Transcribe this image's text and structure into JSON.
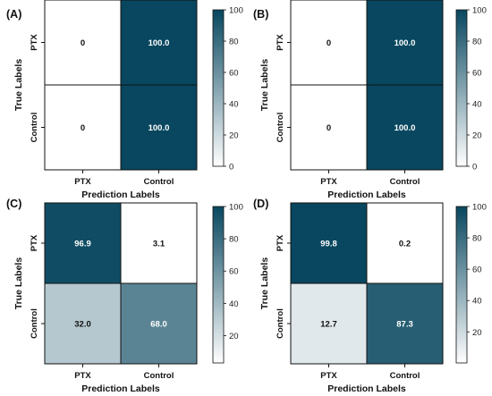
{
  "chart_data": [
    {
      "type": "heatmap",
      "panel": "(A)",
      "xlabel": "Prediction Labels",
      "ylabel": "True Labels",
      "x_categories": [
        "PTX",
        "Control"
      ],
      "y_categories": [
        "PTX",
        "Control"
      ],
      "values": [
        [
          0,
          100.0
        ],
        [
          0,
          100.0
        ]
      ],
      "cell_labels": [
        [
          "0",
          "100.0"
        ],
        [
          "0",
          "100.0"
        ]
      ],
      "colorbar": {
        "range": [
          0,
          100
        ],
        "ticks": [
          0,
          20,
          40,
          60,
          80,
          100
        ]
      }
    },
    {
      "type": "heatmap",
      "panel": "(B)",
      "xlabel": "Prediction Labels",
      "ylabel": "True Labels",
      "x_categories": [
        "PTX",
        "Control"
      ],
      "y_categories": [
        "PTX",
        "Control"
      ],
      "values": [
        [
          0,
          100.0
        ],
        [
          0,
          100.0
        ]
      ],
      "cell_labels": [
        [
          "0",
          "100.0"
        ],
        [
          "0",
          "100.0"
        ]
      ],
      "colorbar": {
        "range": [
          0,
          100
        ],
        "ticks": [
          0,
          20,
          40,
          60,
          80,
          100
        ]
      }
    },
    {
      "type": "heatmap",
      "panel": "(C)",
      "xlabel": "Prediction Labels",
      "ylabel": "True Labels",
      "x_categories": [
        "PTX",
        "Control"
      ],
      "y_categories": [
        "PTX",
        "Control"
      ],
      "values": [
        [
          96.9,
          3.1
        ],
        [
          32.0,
          68.0
        ]
      ],
      "cell_labels": [
        [
          "96.9",
          "3.1"
        ],
        [
          "32.0",
          "68.0"
        ]
      ],
      "colorbar": {
        "range": [
          3.1,
          100
        ],
        "ticks": [
          20,
          40,
          60,
          80,
          100
        ]
      }
    },
    {
      "type": "heatmap",
      "panel": "(D)",
      "xlabel": "Prediction Labels",
      "ylabel": "True Labels",
      "x_categories": [
        "PTX",
        "Control"
      ],
      "y_categories": [
        "PTX",
        "Control"
      ],
      "values": [
        [
          99.8,
          0.2
        ],
        [
          12.7,
          87.3
        ]
      ],
      "cell_labels": [
        [
          "99.8",
          "0.2"
        ],
        [
          "12.7",
          "87.3"
        ]
      ],
      "colorbar": {
        "range": [
          0.2,
          100
        ],
        "ticks": [
          20,
          40,
          60,
          80,
          100
        ]
      }
    }
  ],
  "colors": {
    "low": "#ffffff",
    "high": "#08475f"
  }
}
